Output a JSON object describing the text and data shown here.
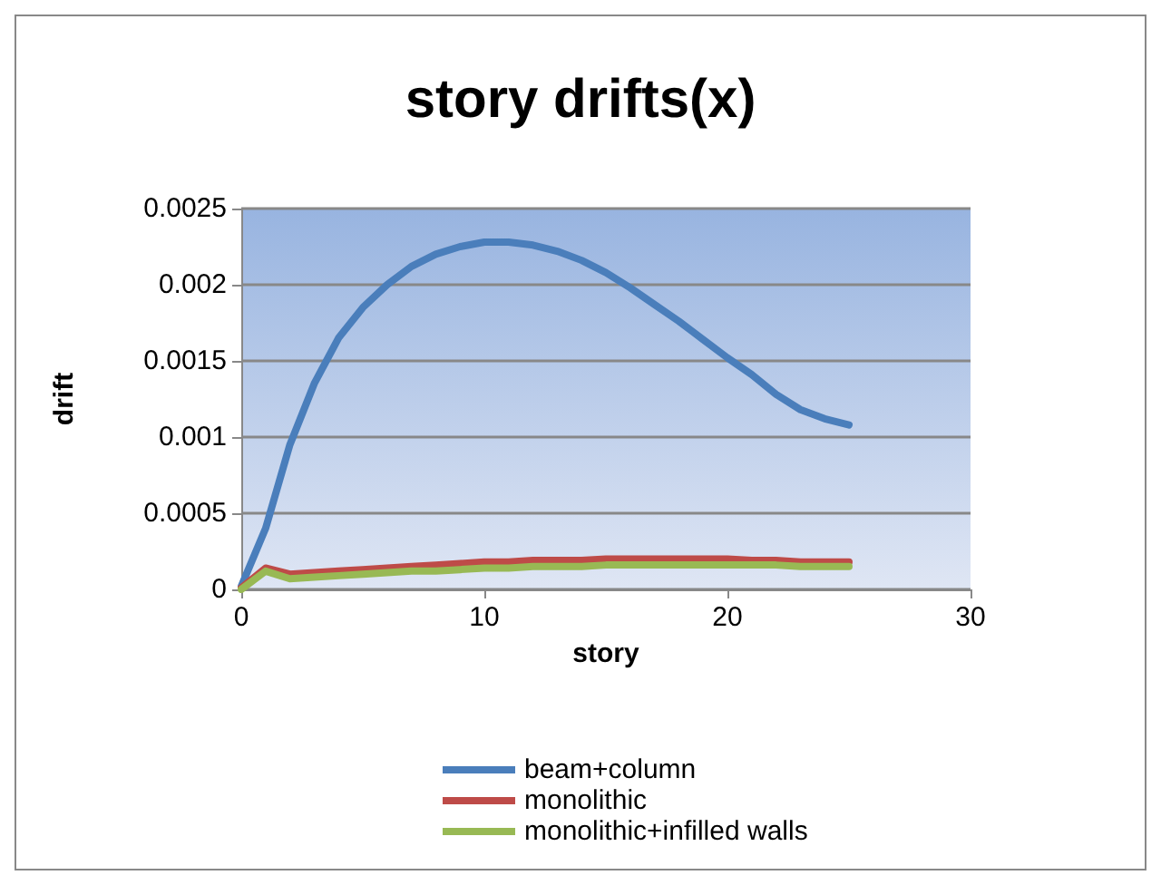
{
  "chart_data": {
    "type": "line",
    "title": "story drifts(x)",
    "xlabel": "story",
    "ylabel": "drift",
    "x": [
      0,
      1,
      2,
      3,
      4,
      5,
      6,
      7,
      8,
      9,
      10,
      11,
      12,
      13,
      14,
      15,
      16,
      17,
      18,
      19,
      20,
      21,
      22,
      23,
      24,
      25
    ],
    "series": [
      {
        "name": "beam+column",
        "color": "#4a7ebb",
        "values": [
          2e-05,
          0.0004,
          0.00095,
          0.00135,
          0.00165,
          0.00185,
          0.002,
          0.00212,
          0.0022,
          0.00225,
          0.00228,
          0.00228,
          0.00226,
          0.00222,
          0.00216,
          0.00208,
          0.00198,
          0.00187,
          0.00176,
          0.00164,
          0.00152,
          0.00141,
          0.00128,
          0.00118,
          0.00112,
          0.00108
        ]
      },
      {
        "name": "monolithic",
        "color": "#be4b48",
        "values": [
          1e-05,
          0.00014,
          0.0001,
          0.00011,
          0.00012,
          0.00013,
          0.00014,
          0.00015,
          0.00016,
          0.00017,
          0.00018,
          0.00018,
          0.00019,
          0.00019,
          0.00019,
          0.0002,
          0.0002,
          0.0002,
          0.0002,
          0.0002,
          0.0002,
          0.00019,
          0.00019,
          0.00018,
          0.00018,
          0.00018
        ]
      },
      {
        "name": "monolithic+infilled walls",
        "color": "#98b954",
        "values": [
          0.0,
          0.00012,
          7e-05,
          8e-05,
          9e-05,
          0.0001,
          0.00011,
          0.00012,
          0.00012,
          0.00013,
          0.00014,
          0.00014,
          0.00015,
          0.00015,
          0.00015,
          0.00016,
          0.00016,
          0.00016,
          0.00016,
          0.00016,
          0.00016,
          0.00016,
          0.00016,
          0.00015,
          0.00015,
          0.00015
        ]
      }
    ],
    "xlim": [
      0,
      30
    ],
    "xticks": [
      0,
      10,
      20,
      30
    ],
    "ylim": [
      0,
      0.0025
    ],
    "yticks": [
      0,
      0.0005,
      0.001,
      0.0015,
      0.002,
      0.0025
    ],
    "grid": "y",
    "legend": "bottom",
    "marker": "none",
    "line_style": "solid"
  }
}
